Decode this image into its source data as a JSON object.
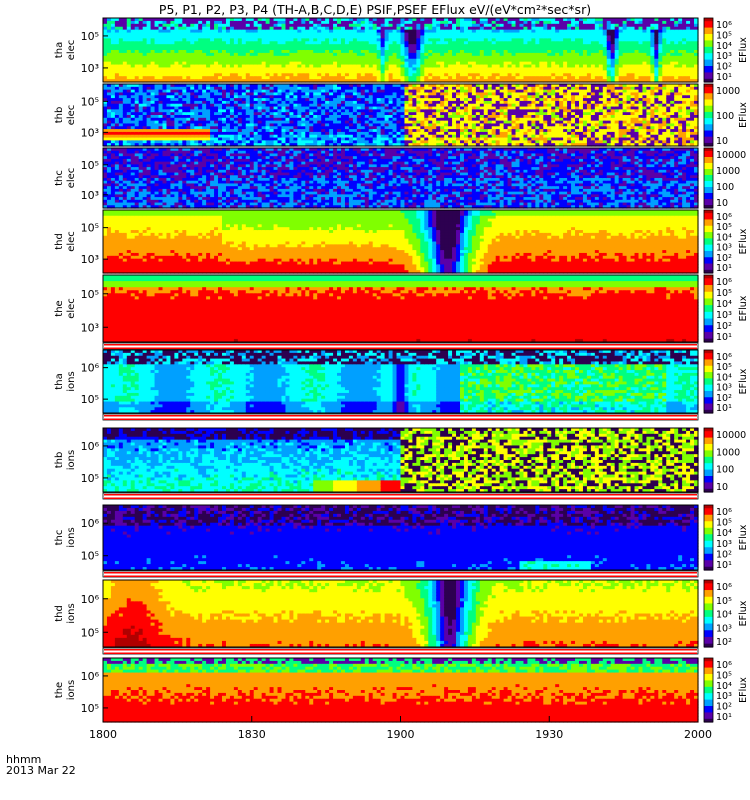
{
  "title": "P5, P1, P2, P3, P4 (TH-A,B,C,D,E) PSIF,PSEF EFlux eV/(eV*cm²*sec*sr)",
  "footer": {
    "line1": "hhmm",
    "line2": "2013 Mar 22"
  },
  "chart_data": {
    "type": "heatmap",
    "xlabel": "hhmm",
    "date": "2013 Mar 22",
    "x_ticks": [
      "1800",
      "1830",
      "1900",
      "1930",
      "2000"
    ],
    "xlim": [
      "18:00",
      "20:00"
    ],
    "colorscale": [
      "#2d0050",
      "#5a00a8",
      "#0000ff",
      "#00a0ff",
      "#00ffff",
      "#00ff80",
      "#80ff00",
      "#ffff00",
      "#ffa000",
      "#ff0000",
      "#b00000"
    ],
    "panels": [
      {
        "probe": "tha",
        "species": "elec",
        "ylabel_1": "tha",
        "ylabel_2": "elec",
        "y_ticks": [
          "10⁵",
          "10³"
        ],
        "cb_label": "EFlux",
        "cb_ticks": [
          "10⁶",
          "10⁵",
          "10⁴",
          "10³",
          "10²",
          "10¹"
        ],
        "pattern": "tha_e"
      },
      {
        "probe": "thb",
        "species": "elec",
        "ylabel_1": "thb",
        "ylabel_2": "elec",
        "y_ticks": [
          "10⁵",
          "10³"
        ],
        "cb_label": "EFlux",
        "cb_ticks": [
          "1000",
          "100",
          "10"
        ],
        "pattern": "thb_e"
      },
      {
        "probe": "thc",
        "species": "elec",
        "ylabel_1": "thc",
        "ylabel_2": "elec",
        "y_ticks": [
          "10⁵",
          "10³"
        ],
        "cb_label": "",
        "cb_ticks": [
          "10000",
          "1000",
          "100",
          "10"
        ],
        "pattern": "thc_e"
      },
      {
        "probe": "thd",
        "species": "elec",
        "ylabel_1": "thd",
        "ylabel_2": "elec",
        "y_ticks": [
          "10⁵",
          "10³"
        ],
        "cb_label": "EFlux",
        "cb_ticks": [
          "10⁶",
          "10⁵",
          "10⁴",
          "10³",
          "10²",
          "10¹"
        ],
        "pattern": "thd_e"
      },
      {
        "probe": "the",
        "species": "elec",
        "ylabel_1": "the",
        "ylabel_2": "elec",
        "y_ticks": [
          "10⁵",
          "10³"
        ],
        "cb_label": "EFlux",
        "cb_ticks": [
          "10⁶",
          "10⁵",
          "10⁴",
          "10³",
          "10²",
          "10¹"
        ],
        "pattern": "the_e"
      },
      {
        "probe": "tha",
        "species": "ions",
        "ylabel_1": "tha",
        "ylabel_2": "ions",
        "y_ticks": [
          "10⁶",
          "10⁵"
        ],
        "cb_label": "EFlux",
        "cb_ticks": [
          "10⁶",
          "10⁵",
          "10⁴",
          "10³",
          "10²",
          "10¹"
        ],
        "pattern": "tha_i"
      },
      {
        "probe": "thb",
        "species": "ions",
        "ylabel_1": "thb",
        "ylabel_2": "ions",
        "y_ticks": [
          "10⁶",
          "10⁵"
        ],
        "cb_label": "",
        "cb_ticks": [
          "10000",
          "1000",
          "100",
          "10"
        ],
        "pattern": "thb_i"
      },
      {
        "probe": "thc",
        "species": "ions",
        "ylabel_1": "thc",
        "ylabel_2": "ions",
        "y_ticks": [
          "10⁶",
          "10⁵"
        ],
        "cb_label": "EFlux",
        "cb_ticks": [
          "10⁶",
          "10⁵",
          "10⁴",
          "10³",
          "10²",
          "10¹"
        ],
        "pattern": "thc_i"
      },
      {
        "probe": "thd",
        "species": "ions",
        "ylabel_1": "thd",
        "ylabel_2": "ions",
        "y_ticks": [
          "10⁶",
          "10⁵"
        ],
        "cb_label": "EFlux",
        "cb_ticks": [
          "10⁶",
          "10⁵",
          "10⁴",
          "10³",
          "10²"
        ],
        "pattern": "thd_i"
      },
      {
        "probe": "the",
        "species": "ions",
        "ylabel_1": "the",
        "ylabel_2": "ions",
        "y_ticks": [
          "10⁶",
          "10⁵"
        ],
        "cb_label": "EFlux",
        "cb_ticks": [
          "10⁶",
          "10⁵",
          "10⁴",
          "10³",
          "10²",
          "10¹"
        ],
        "pattern": "the_i"
      }
    ]
  }
}
